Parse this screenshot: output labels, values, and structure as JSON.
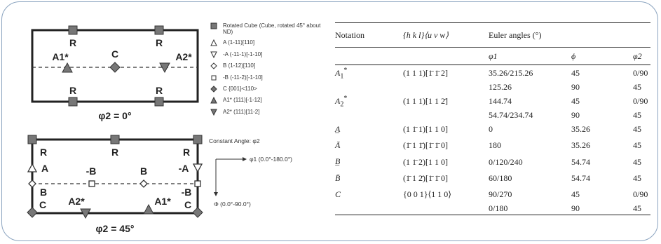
{
  "diagram": {
    "top_panel": {
      "caption": "φ2 = 0°",
      "labels": {
        "r_tl": "R",
        "r_tr": "R",
        "r_bl": "R",
        "r_br": "R",
        "a1": "A1*",
        "c": "C",
        "a2": "A2*"
      }
    },
    "bottom_panel": {
      "caption": "φ2 = 45°",
      "labels": {
        "r_l": "R",
        "r_m": "R",
        "r_r": "R",
        "a": "A",
        "neg_a": "-A",
        "neg_b_l": "-B",
        "b_m": "B",
        "b_l": "B",
        "neg_b_r": "-B",
        "c_l": "C",
        "c_r": "C",
        "a2": "A2*",
        "a1": "A1*"
      }
    },
    "axes": {
      "title": "Constant Angle: φ2",
      "phi1": "φ1 (0.0°-180.0°)",
      "phi": "Φ (0.0°-90.0°)"
    },
    "colors": {
      "marker": "#777777",
      "outline": "#222222"
    }
  },
  "legend": [
    {
      "symbol": "square-filled",
      "label": "Rotated Cube (Cube, rotated 45° about ND)"
    },
    {
      "symbol": "triangle-up-open",
      "label": "A (1-11)[110]"
    },
    {
      "symbol": "triangle-down-open",
      "label": "-A (-11-1)[-1-10]"
    },
    {
      "symbol": "diamond-open",
      "label": "B (1-12)[110]"
    },
    {
      "symbol": "square-open",
      "label": "-B (-11-2)[-1-10]"
    },
    {
      "symbol": "diamond-filled",
      "label": "C {001}<110>"
    },
    {
      "symbol": "triangle-up-filled",
      "label": "A1* (111)[-1-12]"
    },
    {
      "symbol": "triangle-down-filled",
      "label": "A2* (111)[11-2]"
    }
  ],
  "table": {
    "headers": {
      "notation": "Notation",
      "miller_a": "{h k l}",
      "miller_b": "⟨u v w⟩",
      "euler": "Euler angles (°)",
      "phi1": "φ1",
      "phi": "ϕ",
      "phi2": "φ2"
    },
    "rows": [
      {
        "notation": "A",
        "sub": "1",
        "sup": "*",
        "miller": "(1 1 1)[1̄ 1̄ 2]",
        "phi1": "35.26/215.26",
        "phi": "45",
        "phi2": "0/90"
      },
      {
        "notation": "",
        "sub": "",
        "sup": "",
        "miller": "",
        "phi1": "125.26",
        "phi": "90",
        "phi2": "45"
      },
      {
        "notation": "A",
        "sub": "2",
        "sup": "*",
        "miller": "(1 1 1)[1 1 2̄]",
        "phi1": "144.74",
        "phi": "45",
        "phi2": "0/90"
      },
      {
        "notation": "",
        "sub": "",
        "sup": "",
        "miller": "",
        "phi1": "54.74/234.74",
        "phi": "90",
        "phi2": "45"
      },
      {
        "notation": "A̲",
        "sub": "",
        "sup": "",
        "miller": "(1 1̄ 1)[1 1 0]",
        "phi1": "0",
        "phi": "35.26",
        "phi2": "45"
      },
      {
        "notation": "Ā",
        "sub": "",
        "sup": "",
        "miller": "(1̄ 1 1̄)[1̄ 1̄ 0]",
        "phi1": "180",
        "phi": "35.26",
        "phi2": "45"
      },
      {
        "notation": "B̲",
        "sub": "",
        "sup": "",
        "miller": "(1 1̄ 2)[1 1 0]",
        "phi1": "0/120/240",
        "phi": "54.74",
        "phi2": "45"
      },
      {
        "notation": "B̄",
        "sub": "",
        "sup": "",
        "miller": "(1̄ 1 2̄)[1̄ 1̄ 0]",
        "phi1": "60/180",
        "phi": "54.74",
        "phi2": "45"
      },
      {
        "notation": "C",
        "sub": "",
        "sup": "",
        "miller": "{0 0 1}⟨1 1 0⟩",
        "phi1": "90/270",
        "phi": "45",
        "phi2": "0/90"
      },
      {
        "notation": "",
        "sub": "",
        "sup": "",
        "miller": "",
        "phi1": "0/180",
        "phi": "90",
        "phi2": "45"
      }
    ]
  }
}
